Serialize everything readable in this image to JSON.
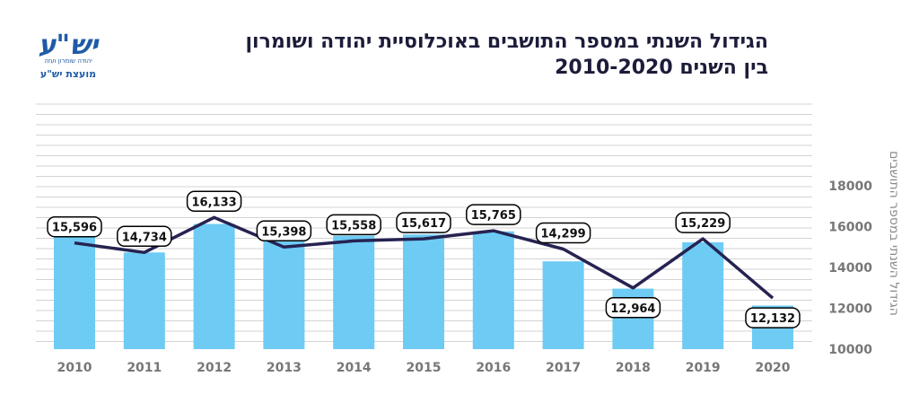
{
  "logo": {
    "org_name": "מועצת יש\"ע",
    "glyph_text": "יש\"ע",
    "tagline": "יהודה שומרון ועזה"
  },
  "chart_data": {
    "type": "bar",
    "title": "הגידול השנתי במספר התושבים באוכלוסיית יהודה ושומרון",
    "subtitle": "בין השנים 2010-2020",
    "ylabel": "הגידול השנתי במספר התושבים",
    "xlabel": "",
    "categories": [
      "2010",
      "2011",
      "2012",
      "2013",
      "2014",
      "2015",
      "2016",
      "2017",
      "2018",
      "2019",
      "2020"
    ],
    "series": [
      {
        "type": "bar",
        "values": [
          15596,
          14734,
          16133,
          15398,
          15558,
          15617,
          15765,
          14299,
          12964,
          15229,
          12132
        ]
      },
      {
        "type": "line",
        "values": [
          15200,
          14734,
          16450,
          15000,
          15300,
          15400,
          15800,
          14900,
          13000,
          15400,
          12500
        ]
      }
    ],
    "data_labels": [
      "15,596",
      "14,734",
      "16,133",
      "15,398",
      "15,558",
      "15,617",
      "15,765",
      "14,299",
      "12,964",
      "15,229",
      "12,132"
    ],
    "yticks": [
      "18000",
      "16000",
      "14000",
      "12000",
      "10000"
    ],
    "ylim": [
      10000,
      19000
    ],
    "grid": true,
    "colors": {
      "bar": "#6dcbf4",
      "line": "#262352",
      "grid": "#d3d3d3",
      "label_border": "#000000",
      "tick": "#777777",
      "title": "#1c1c3a",
      "logo": "#1f5aa6"
    }
  }
}
